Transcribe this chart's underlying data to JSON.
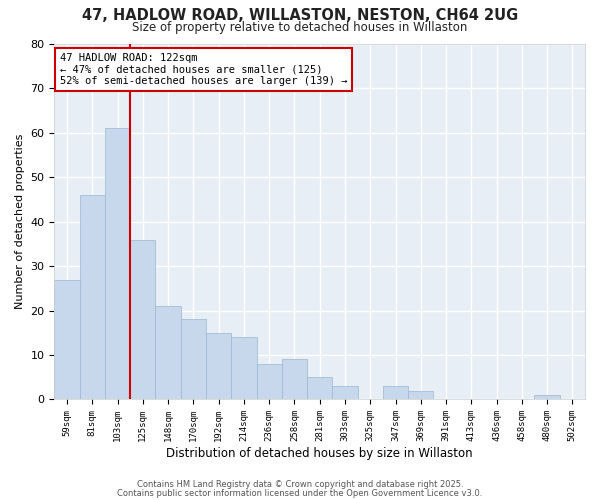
{
  "title1": "47, HADLOW ROAD, WILLASTON, NESTON, CH64 2UG",
  "title2": "Size of property relative to detached houses in Willaston",
  "xlabel": "Distribution of detached houses by size in Willaston",
  "ylabel": "Number of detached properties",
  "bar_color": "#c8d8ec",
  "bar_edge_color": "#9ab8d0",
  "vline_color": "#cc0000",
  "vline_x_index": 3,
  "annotation_text": "47 HADLOW ROAD: 122sqm\n← 47% of detached houses are smaller (125)\n52% of semi-detached houses are larger (139) →",
  "categories": [
    "59sqm",
    "81sqm",
    "103sqm",
    "125sqm",
    "148sqm",
    "170sqm",
    "192sqm",
    "214sqm",
    "236sqm",
    "258sqm",
    "281sqm",
    "303sqm",
    "325sqm",
    "347sqm",
    "369sqm",
    "391sqm",
    "413sqm",
    "436sqm",
    "458sqm",
    "480sqm",
    "502sqm"
  ],
  "values": [
    27,
    46,
    61,
    36,
    21,
    18,
    15,
    14,
    8,
    9,
    5,
    3,
    0,
    3,
    2,
    0,
    0,
    0,
    0,
    1,
    0
  ],
  "ylim": [
    0,
    80
  ],
  "yticks": [
    0,
    10,
    20,
    30,
    40,
    50,
    60,
    70,
    80
  ],
  "footer1": "Contains HM Land Registry data © Crown copyright and database right 2025.",
  "footer2": "Contains public sector information licensed under the Open Government Licence v3.0.",
  "background_color": "#ffffff",
  "plot_bg_color": "#e8eef5",
  "grid_color": "#ffffff",
  "annotation_box_facecolor": "#ffffff",
  "annotation_box_edgecolor": "#cc0000"
}
